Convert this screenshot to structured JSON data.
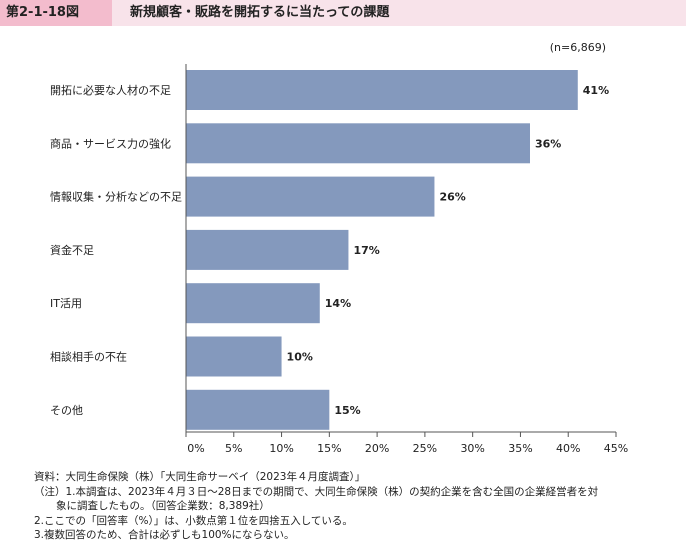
{
  "header": {
    "figure_label": "第2-1-18図",
    "title": "新規顧客・販路を開拓するに当たっての課題"
  },
  "chart_data": {
    "type": "bar",
    "orientation": "horizontal",
    "sample_note": "(n=6,869)",
    "categories": [
      "開拓に必要な人材の不足",
      "商品・サービス力の強化",
      "情報収集・分析などの不足",
      "資金不足",
      "IT活用",
      "相談相手の不在",
      "その他"
    ],
    "values": [
      41,
      36,
      26,
      17,
      14,
      10,
      15
    ],
    "value_labels": [
      "41%",
      "36%",
      "26%",
      "17%",
      "14%",
      "10%",
      "15%"
    ],
    "xlim": [
      0,
      45
    ],
    "x_ticks": [
      0,
      5,
      10,
      15,
      20,
      25,
      30,
      35,
      40,
      45
    ],
    "x_tick_labels": [
      "0%",
      "5%",
      "10%",
      "15%",
      "20%",
      "25%",
      "30%",
      "35%",
      "40%",
      "45%"
    ],
    "grid": false,
    "bar_color": "#8499bd"
  },
  "notes": [
    "資料：大同生命保険（株）「大同生命サーベイ（2023年４月度調査）」",
    "（注）1.本調査は、2023年４月３日～28日までの期間で、大同生命保険（株）の契約企業を含む全国の企業経営者を対",
    "象に調査したもの。（回答企業数：8,389社）",
    "2.ここでの「回答率（%）」は、小数点第１位を四捨五入している。",
    "3.複数回答のため、合計は必ずしも100%にならない。"
  ]
}
